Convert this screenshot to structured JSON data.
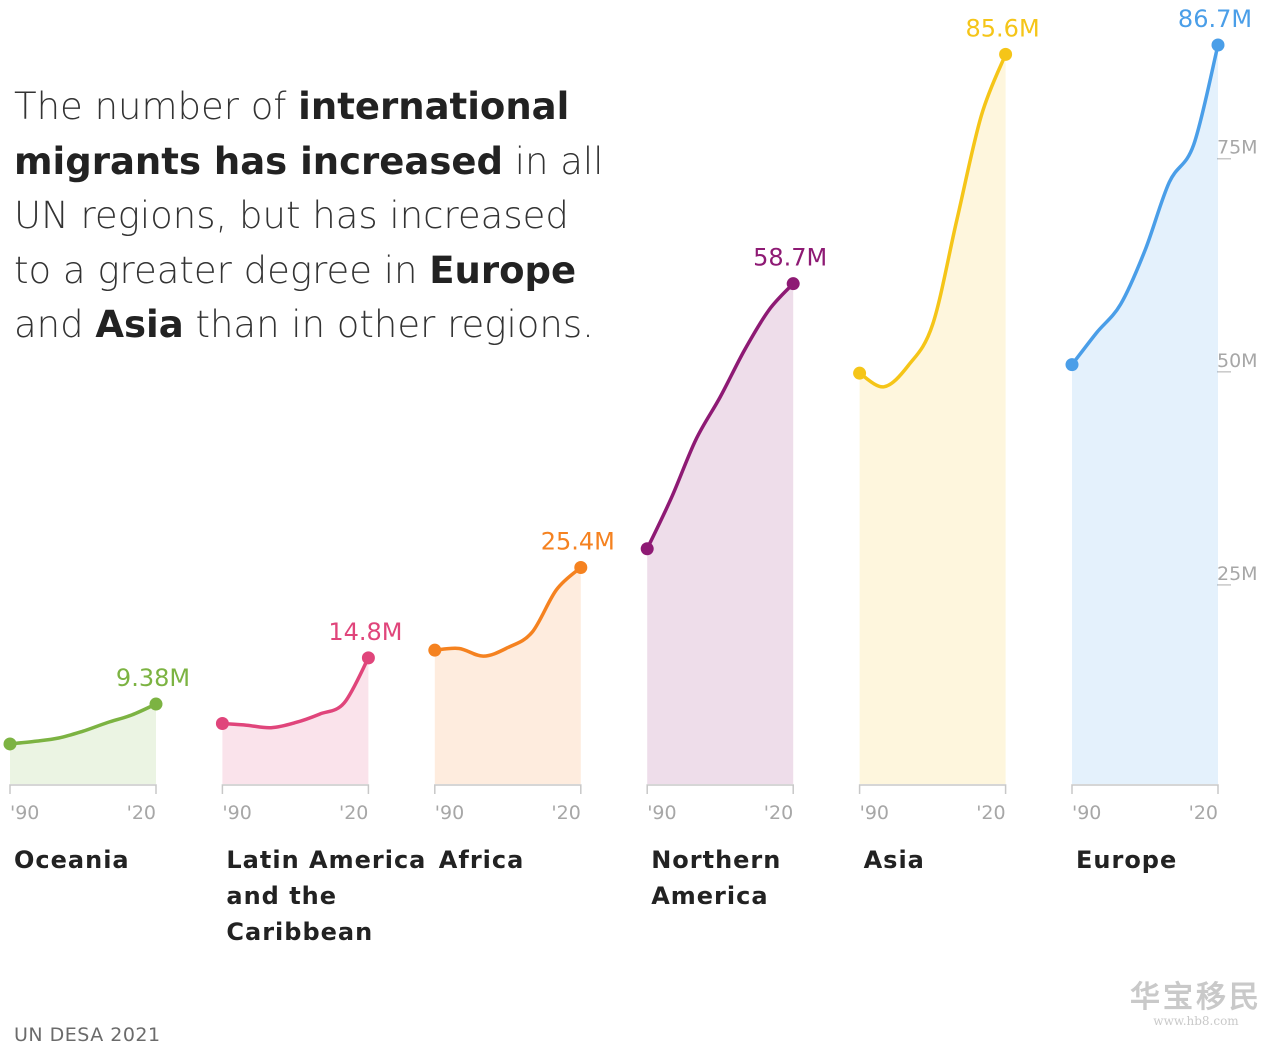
{
  "headline": {
    "p1": "The number of ",
    "b1": "international migrants has increased",
    "p2": " in all UN regions, but has increased to a greater degree in ",
    "b2": "Europe",
    "p3": " and ",
    "b3": "Asia",
    "p4": " than in other regions."
  },
  "source": "UN DESA 2021",
  "watermark": {
    "main": "华宝移民",
    "url": "www.hb8.com"
  },
  "chart_data": {
    "type": "area",
    "title": "",
    "x_tick_labels": [
      "'90",
      "'20"
    ],
    "ylim": [
      0,
      86.7
    ],
    "y_ticks": [
      {
        "value": 25,
        "label": "25M"
      },
      {
        "value": 50,
        "label": "50M"
      },
      {
        "value": 75,
        "label": "75M"
      }
    ],
    "grid": false,
    "series": [
      {
        "name": "Oceania",
        "color": "#7cb342",
        "end_label": "9.38M",
        "x": [
          1990,
          1995,
          2000,
          2005,
          2010,
          2015,
          2020
        ],
        "values": [
          4.7,
          5.0,
          5.4,
          6.2,
          7.2,
          8.1,
          9.38
        ]
      },
      {
        "name": "Latin America and the Caribbean",
        "color": "#e0457b",
        "end_label": "14.8M",
        "x": [
          1990,
          1995,
          2000,
          2005,
          2010,
          2015,
          2020
        ],
        "values": [
          7.1,
          6.9,
          6.6,
          7.2,
          8.2,
          9.5,
          14.8
        ]
      },
      {
        "name": "Africa",
        "color": "#f58220",
        "end_label": "25.4M",
        "x": [
          1990,
          1995,
          2000,
          2005,
          2010,
          2015,
          2020
        ],
        "values": [
          15.7,
          15.9,
          15.0,
          16.0,
          17.8,
          22.8,
          25.4
        ]
      },
      {
        "name": "Northern America",
        "color": "#8e1a74",
        "end_label": "58.7M",
        "x": [
          1990,
          1995,
          2000,
          2005,
          2010,
          2015,
          2020
        ],
        "values": [
          27.6,
          33.6,
          40.4,
          45.4,
          50.9,
          55.6,
          58.7
        ]
      },
      {
        "name": "Asia",
        "color": "#f5c518",
        "end_label": "85.6M",
        "x": [
          1990,
          1995,
          2000,
          2005,
          2010,
          2015,
          2020
        ],
        "values": [
          48.2,
          46.6,
          49.1,
          53.9,
          66.2,
          78.4,
          85.6
        ]
      },
      {
        "name": "Europe",
        "color": "#4a9ee8",
        "end_label": "86.7M",
        "x": [
          1990,
          1995,
          2000,
          2005,
          2010,
          2015,
          2020
        ],
        "values": [
          49.2,
          52.9,
          56.3,
          62.6,
          70.6,
          75.0,
          86.7
        ]
      }
    ]
  }
}
